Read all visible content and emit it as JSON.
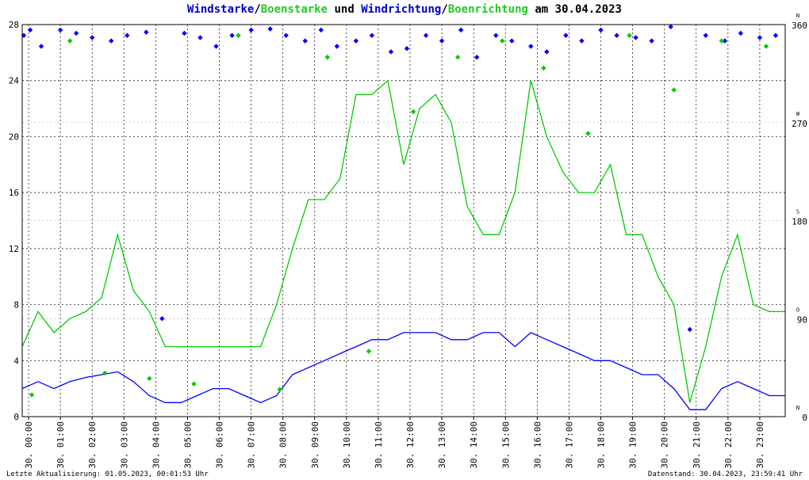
{
  "title": {
    "part1": "Windstarke",
    "sep1": "/",
    "part2": "Boenstarke",
    "mid": " und ",
    "part3": "Windrichtung",
    "sep2": "/",
    "part4": "Boenrichtung",
    "tail": " am 30.04.2023"
  },
  "colors": {
    "wind": "#0000ff",
    "gust": "#00cc00",
    "grid": "#000000",
    "title_blue": "#0000cc",
    "title_green": "#22cc22",
    "red_marker": "#cc0000"
  },
  "footer": {
    "left": "Letzte Aktualisierung: 01.05.2023, 00:01:53 Uhr",
    "right": "Datenstand: 30.04.2023, 23:59:41 Uhr"
  },
  "chart_data": {
    "type": "line",
    "x_range": [
      0,
      24
    ],
    "y_left": {
      "range": [
        0,
        28
      ],
      "ticks": [
        "0",
        "4",
        "8",
        "12",
        "16",
        "20",
        "24",
        "28"
      ]
    },
    "y_right": {
      "range": [
        0,
        360
      ],
      "ticks": [
        {
          "value": 0,
          "label": "0",
          "letter": "N"
        },
        {
          "value": 90,
          "label": "90",
          "letter": "O"
        },
        {
          "value": 180,
          "label": "180",
          "letter": "S"
        },
        {
          "value": 270,
          "label": "270",
          "letter": "W"
        },
        {
          "value": 360,
          "label": "360",
          "letter": "N"
        }
      ]
    },
    "x_tick_labels": [
      "30. 00:00",
      "30. 01:00",
      "30. 02:00",
      "30. 03:00",
      "30. 04:00",
      "30. 05:00",
      "30. 06:00",
      "30. 07:00",
      "30. 08:00",
      "30. 09:00",
      "30. 10:00",
      "30. 11:00",
      "30. 12:00",
      "30. 13:00",
      "30. 14:00",
      "30. 15:00",
      "30. 16:00",
      "30. 17:00",
      "30. 18:00",
      "30. 19:00",
      "30. 20:00",
      "30. 21:00",
      "30. 22:00",
      "30. 23:00"
    ],
    "series": [
      {
        "name": "Windstarke",
        "kind": "line",
        "color": "#0000ff",
        "x": [
          0,
          0.5,
          1,
          1.5,
          2,
          2.5,
          3,
          3.5,
          4,
          4.5,
          5,
          5.5,
          6,
          6.5,
          7,
          7.5,
          8,
          8.5,
          9,
          9.5,
          10,
          10.5,
          11,
          11.5,
          12,
          12.5,
          13,
          13.5,
          14,
          14.5,
          15,
          15.5,
          16,
          16.5,
          17,
          17.5,
          18,
          18.5,
          19,
          19.5,
          20,
          20.5,
          21,
          21.5,
          22,
          22.5,
          23,
          23.5,
          24
        ],
        "y": [
          2.0,
          2.5,
          2.0,
          2.5,
          2.8,
          3.0,
          3.2,
          2.5,
          1.5,
          1.0,
          1.0,
          1.5,
          2.0,
          2.0,
          1.5,
          1.0,
          1.5,
          3.0,
          3.5,
          4.0,
          4.5,
          5.0,
          5.5,
          5.5,
          6.0,
          6.0,
          6.0,
          5.5,
          5.5,
          6.0,
          6.0,
          5.0,
          6.0,
          5.5,
          5.0,
          4.5,
          4.0,
          4.0,
          3.5,
          3.0,
          3.0,
          2.0,
          0.5,
          0.5,
          2.0,
          2.5,
          2.0,
          1.5,
          1.5
        ]
      },
      {
        "name": "Boenstarke",
        "kind": "line",
        "color": "#00cc00",
        "x": [
          0,
          0.5,
          1,
          1.5,
          2,
          2.5,
          3,
          3.5,
          4,
          4.5,
          5,
          5.5,
          6,
          6.5,
          7,
          7.5,
          8,
          8.5,
          9,
          9.5,
          10,
          10.5,
          11,
          11.5,
          12,
          12.5,
          13,
          13.5,
          14,
          14.5,
          15,
          15.5,
          16,
          16.5,
          17,
          17.5,
          18,
          18.5,
          19,
          19.5,
          20,
          20.5,
          21,
          21.5,
          22,
          22.5,
          23,
          23.5,
          24
        ],
        "y": [
          5.0,
          7.5,
          6.0,
          7.0,
          7.5,
          8.5,
          13.0,
          9.0,
          7.5,
          5.0,
          5.0,
          5.0,
          5.0,
          5.0,
          5.0,
          5.0,
          8.0,
          12.0,
          15.5,
          15.5,
          17.0,
          23.0,
          23.0,
          24.0,
          18.0,
          22.0,
          23.0,
          21.0,
          15.0,
          13.0,
          13.0,
          16.0,
          24.0,
          20.0,
          17.5,
          16.0,
          16.0,
          18.0,
          13.0,
          13.0,
          10.0,
          8.0,
          1.0,
          5.0,
          10.0,
          13.0,
          8.0,
          7.5,
          7.5
        ]
      },
      {
        "name": "Windrichtung",
        "kind": "scatter",
        "color": "#0000ff",
        "x": [
          0.05,
          0.25,
          0.6,
          1.2,
          1.7,
          2.2,
          2.8,
          3.3,
          3.9,
          4.4,
          5.1,
          5.6,
          6.1,
          6.6,
          7.2,
          7.8,
          8.3,
          8.9,
          9.4,
          9.9,
          10.5,
          11.0,
          11.6,
          12.1,
          12.7,
          13.2,
          13.8,
          14.3,
          14.9,
          15.4,
          16.0,
          16.5,
          17.1,
          17.6,
          18.2,
          18.7,
          19.3,
          19.8,
          20.4,
          21.0,
          21.5,
          22.1,
          22.6,
          23.2,
          23.7
        ],
        "y": [
          350,
          355,
          340,
          355,
          352,
          348,
          345,
          350,
          353,
          90,
          352,
          348,
          340,
          350,
          355,
          356,
          350,
          345,
          355,
          340,
          345,
          350,
          335,
          338,
          350,
          345,
          355,
          330,
          350,
          345,
          340,
          335,
          350,
          345,
          355,
          350,
          348,
          345,
          358,
          80,
          350,
          345,
          352,
          348,
          350
        ]
      },
      {
        "name": "Boenrichtung",
        "kind": "scatter",
        "color": "#00cc00",
        "x": [
          0.3,
          1.5,
          2.6,
          4.0,
          5.4,
          6.8,
          8.1,
          9.6,
          10.9,
          12.3,
          13.7,
          15.1,
          16.4,
          17.8,
          19.1,
          20.5,
          22.0,
          23.4
        ],
        "y": [
          20,
          345,
          40,
          35,
          30,
          350,
          25,
          330,
          60,
          280,
          330,
          345,
          320,
          260,
          350,
          300,
          345,
          340
        ]
      }
    ]
  }
}
